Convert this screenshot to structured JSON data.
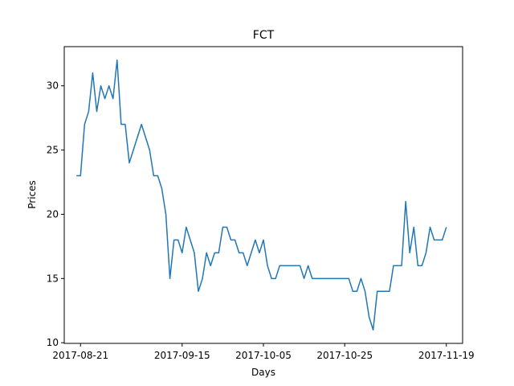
{
  "chart_data": {
    "type": "line",
    "title": "FCT",
    "xlabel": "Days",
    "ylabel": "Prices",
    "x_is_date": true,
    "xlim": [
      "2017-08-17",
      "2017-11-23"
    ],
    "ylim": [
      9.95,
      33.05
    ],
    "x_ticks": [
      {
        "date": "2017-08-21",
        "label": "2017-08-21"
      },
      {
        "date": "2017-09-15",
        "label": "2017-09-15"
      },
      {
        "date": "2017-10-05",
        "label": "2017-10-05"
      },
      {
        "date": "2017-10-25",
        "label": "2017-10-25"
      },
      {
        "date": "2017-11-19",
        "label": "2017-11-19"
      }
    ],
    "y_ticks": [
      10,
      15,
      20,
      25,
      30
    ],
    "grid": false,
    "line_color": "#1f77b4",
    "series": [
      {
        "x": [
          "2017-08-20",
          "2017-08-21",
          "2017-08-22",
          "2017-08-23",
          "2017-08-24",
          "2017-08-25",
          "2017-08-26",
          "2017-08-27",
          "2017-08-28",
          "2017-08-29",
          "2017-08-30",
          "2017-08-31",
          "2017-09-01",
          "2017-09-02",
          "2017-09-03",
          "2017-09-05",
          "2017-09-06",
          "2017-09-07",
          "2017-09-08",
          "2017-09-09",
          "2017-09-10",
          "2017-09-11",
          "2017-09-12",
          "2017-09-13",
          "2017-09-14",
          "2017-09-15",
          "2017-09-16",
          "2017-09-17",
          "2017-09-18",
          "2017-09-19",
          "2017-09-20",
          "2017-09-21",
          "2017-09-22",
          "2017-09-23",
          "2017-09-24",
          "2017-09-25",
          "2017-09-26",
          "2017-09-27",
          "2017-09-28",
          "2017-09-29",
          "2017-09-30",
          "2017-10-01",
          "2017-10-02",
          "2017-10-03",
          "2017-10-04",
          "2017-10-05",
          "2017-10-06",
          "2017-10-07",
          "2017-10-08",
          "2017-10-09",
          "2017-10-14",
          "2017-10-15",
          "2017-10-16",
          "2017-10-17",
          "2017-10-26",
          "2017-10-27",
          "2017-10-28",
          "2017-10-29",
          "2017-10-30",
          "2017-10-31",
          "2017-11-01",
          "2017-11-02",
          "2017-11-03",
          "2017-11-05",
          "2017-11-06",
          "2017-11-07",
          "2017-11-08",
          "2017-11-09",
          "2017-11-10",
          "2017-11-11",
          "2017-11-12",
          "2017-11-13",
          "2017-11-14",
          "2017-11-15",
          "2017-11-16",
          "2017-11-17",
          "2017-11-18",
          "2017-11-19"
        ],
        "values": [
          23,
          23,
          27,
          28,
          31,
          28,
          30,
          29,
          30,
          29,
          32,
          27,
          27,
          24,
          25,
          27,
          26,
          25,
          23,
          23,
          22,
          20,
          15,
          18,
          18,
          17,
          19,
          18,
          17,
          14,
          15,
          17,
          16,
          17,
          17,
          19,
          19,
          18,
          18,
          17,
          17,
          16,
          17,
          18,
          17,
          18,
          16,
          15,
          15,
          16,
          16,
          15,
          16,
          15,
          15,
          14,
          14,
          15,
          14,
          12,
          11,
          14,
          14,
          14,
          16,
          16,
          16,
          21,
          17,
          19,
          16,
          16,
          17,
          19,
          18,
          18,
          18,
          19
        ]
      }
    ]
  }
}
